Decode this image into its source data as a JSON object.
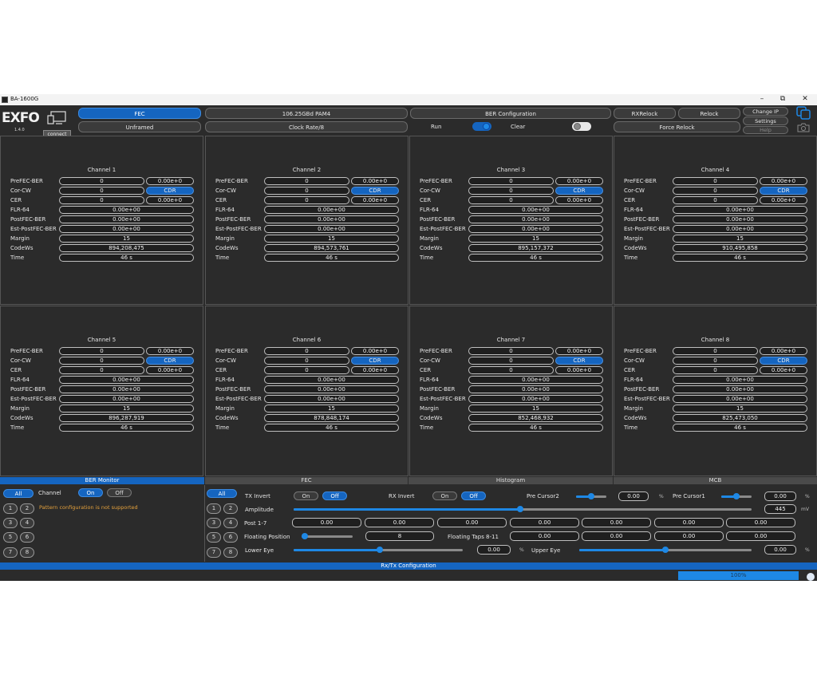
{
  "window": {
    "title": "BA-1600G",
    "minimize": "–",
    "maximize": "⧉",
    "close": "✕"
  },
  "toolbar": {
    "logo": "EXFO",
    "version": "1.4.0",
    "connect_tooltip": "connect",
    "fec": "FEC",
    "unframed": "Unframed",
    "rate": "106.25GBd PAM4",
    "clock": "Clock Rate/8",
    "ber_config": "BER Configuration",
    "run": "Run",
    "clear": "Clear",
    "rxrelock": "RXRelock",
    "relock": "Relock",
    "force_relock": "Force Relock",
    "change_ip": "Change IP",
    "settings": "Settings",
    "help": "Help"
  },
  "row_labels": [
    "PreFEC-BER",
    "Cor-CW",
    "CER",
    "FLR-64",
    "PostFEC-BER",
    "Est-PostFEC-BER",
    "Margin",
    "CodeWs",
    "Time"
  ],
  "channels": [
    {
      "title": "Channel 1",
      "prefec": "0",
      "prefec_e": "0.00e+0",
      "corcw": "0",
      "cdr": "CDR",
      "cer": "0",
      "cer_e": "0.00e+0",
      "flr": "0.00e+00",
      "postfec": "0.00e+00",
      "est": "0.00e+00",
      "margin": "15",
      "codews": "894,208,475",
      "time": "46 s"
    },
    {
      "title": "Channel 2",
      "prefec": "0",
      "prefec_e": "0.00e+0",
      "corcw": "0",
      "cdr": "CDR",
      "cer": "0",
      "cer_e": "0.00e+0",
      "flr": "0.00e+00",
      "postfec": "0.00e+00",
      "est": "0.00e+00",
      "margin": "15",
      "codews": "894,573,761",
      "time": "46 s"
    },
    {
      "title": "Channel 3",
      "prefec": "0",
      "prefec_e": "0.00e+0",
      "corcw": "0",
      "cdr": "CDR",
      "cer": "0",
      "cer_e": "0.00e+0",
      "flr": "0.00e+00",
      "postfec": "0.00e+00",
      "est": "0.00e+00",
      "margin": "15",
      "codews": "895,157,372",
      "time": "46 s"
    },
    {
      "title": "Channel 4",
      "prefec": "0",
      "prefec_e": "0.00e+0",
      "corcw": "0",
      "cdr": "CDR",
      "cer": "0",
      "cer_e": "0.00e+0",
      "flr": "0.00e+00",
      "postfec": "0.00e+00",
      "est": "0.00e+00",
      "margin": "15",
      "codews": "910,495,858",
      "time": "46 s"
    },
    {
      "title": "Channel 5",
      "prefec": "0",
      "prefec_e": "0.00e+0",
      "corcw": "0",
      "cdr": "CDR",
      "cer": "0",
      "cer_e": "0.00e+0",
      "flr": "0.00e+00",
      "postfec": "0.00e+00",
      "est": "0.00e+00",
      "margin": "15",
      "codews": "896,287,919",
      "time": "46 s"
    },
    {
      "title": "Channel 6",
      "prefec": "0",
      "prefec_e": "0.00e+0",
      "corcw": "0",
      "cdr": "CDR",
      "cer": "0",
      "cer_e": "0.00e+0",
      "flr": "0.00e+00",
      "postfec": "0.00e+00",
      "est": "0.00e+00",
      "margin": "15",
      "codews": "878,848,174",
      "time": "46 s"
    },
    {
      "title": "Channel 7",
      "prefec": "0",
      "prefec_e": "0.00e+0",
      "corcw": "0",
      "cdr": "CDR",
      "cer": "0",
      "cer_e": "0.00e+0",
      "flr": "0.00e+00",
      "postfec": "0.00e+00",
      "est": "0.00e+00",
      "margin": "15",
      "codews": "852,468,932",
      "time": "46 s"
    },
    {
      "title": "Channel 8",
      "prefec": "0",
      "prefec_e": "0.00e+0",
      "corcw": "0",
      "cdr": "CDR",
      "cer": "0",
      "cer_e": "0.00e+0",
      "flr": "0.00e+00",
      "postfec": "0.00e+00",
      "est": "0.00e+00",
      "margin": "15",
      "codews": "825,473,050",
      "time": "46 s"
    }
  ],
  "bottom_tabs": [
    "BER Monitor",
    "FEC",
    "Histogram",
    "MCB"
  ],
  "ber_monitor": {
    "all": "All",
    "channel": "Channel",
    "on": "On",
    "off": "Off",
    "warning": "Pattern configuration is not supported",
    "pairs": [
      [
        "1",
        "2"
      ],
      [
        "3",
        "4"
      ],
      [
        "5",
        "6"
      ],
      [
        "7",
        "8"
      ]
    ]
  },
  "rxtx": {
    "all": "All",
    "tx_invert": "TX Invert",
    "rx_invert": "RX Invert",
    "on": "On",
    "off": "Off",
    "pre_cursor2": "Pre Cursor2",
    "pre_cursor2_val": "0.00",
    "pre_cursor1": "Pre Cursor1",
    "pre_cursor1_val": "0.00",
    "pct": "%",
    "amplitude": "Amplitude",
    "amplitude_val": "445",
    "mv": "mV",
    "post": "Post 1-7",
    "post_vals": [
      "0.00",
      "0.00",
      "0.00",
      "0.00",
      "0.00",
      "0.00",
      "0.00"
    ],
    "floating_position": "Floating Position",
    "floating_position_val": "8",
    "floating_taps": "Floating Taps 8-11",
    "floating_taps_vals": [
      "0.00",
      "0.00",
      "0.00",
      "0.00"
    ],
    "lower_eye": "Lower Eye",
    "lower_eye_val": "0.00",
    "upper_eye": "Upper Eye",
    "upper_eye_val": "0.00",
    "config": "Rx/Tx Configuration"
  },
  "progress": {
    "value": "100%",
    "fraction": 1.0
  },
  "colors": {
    "accent": "#1565c0",
    "background": "#2b2b2b",
    "warning": "#e6a23c"
  }
}
